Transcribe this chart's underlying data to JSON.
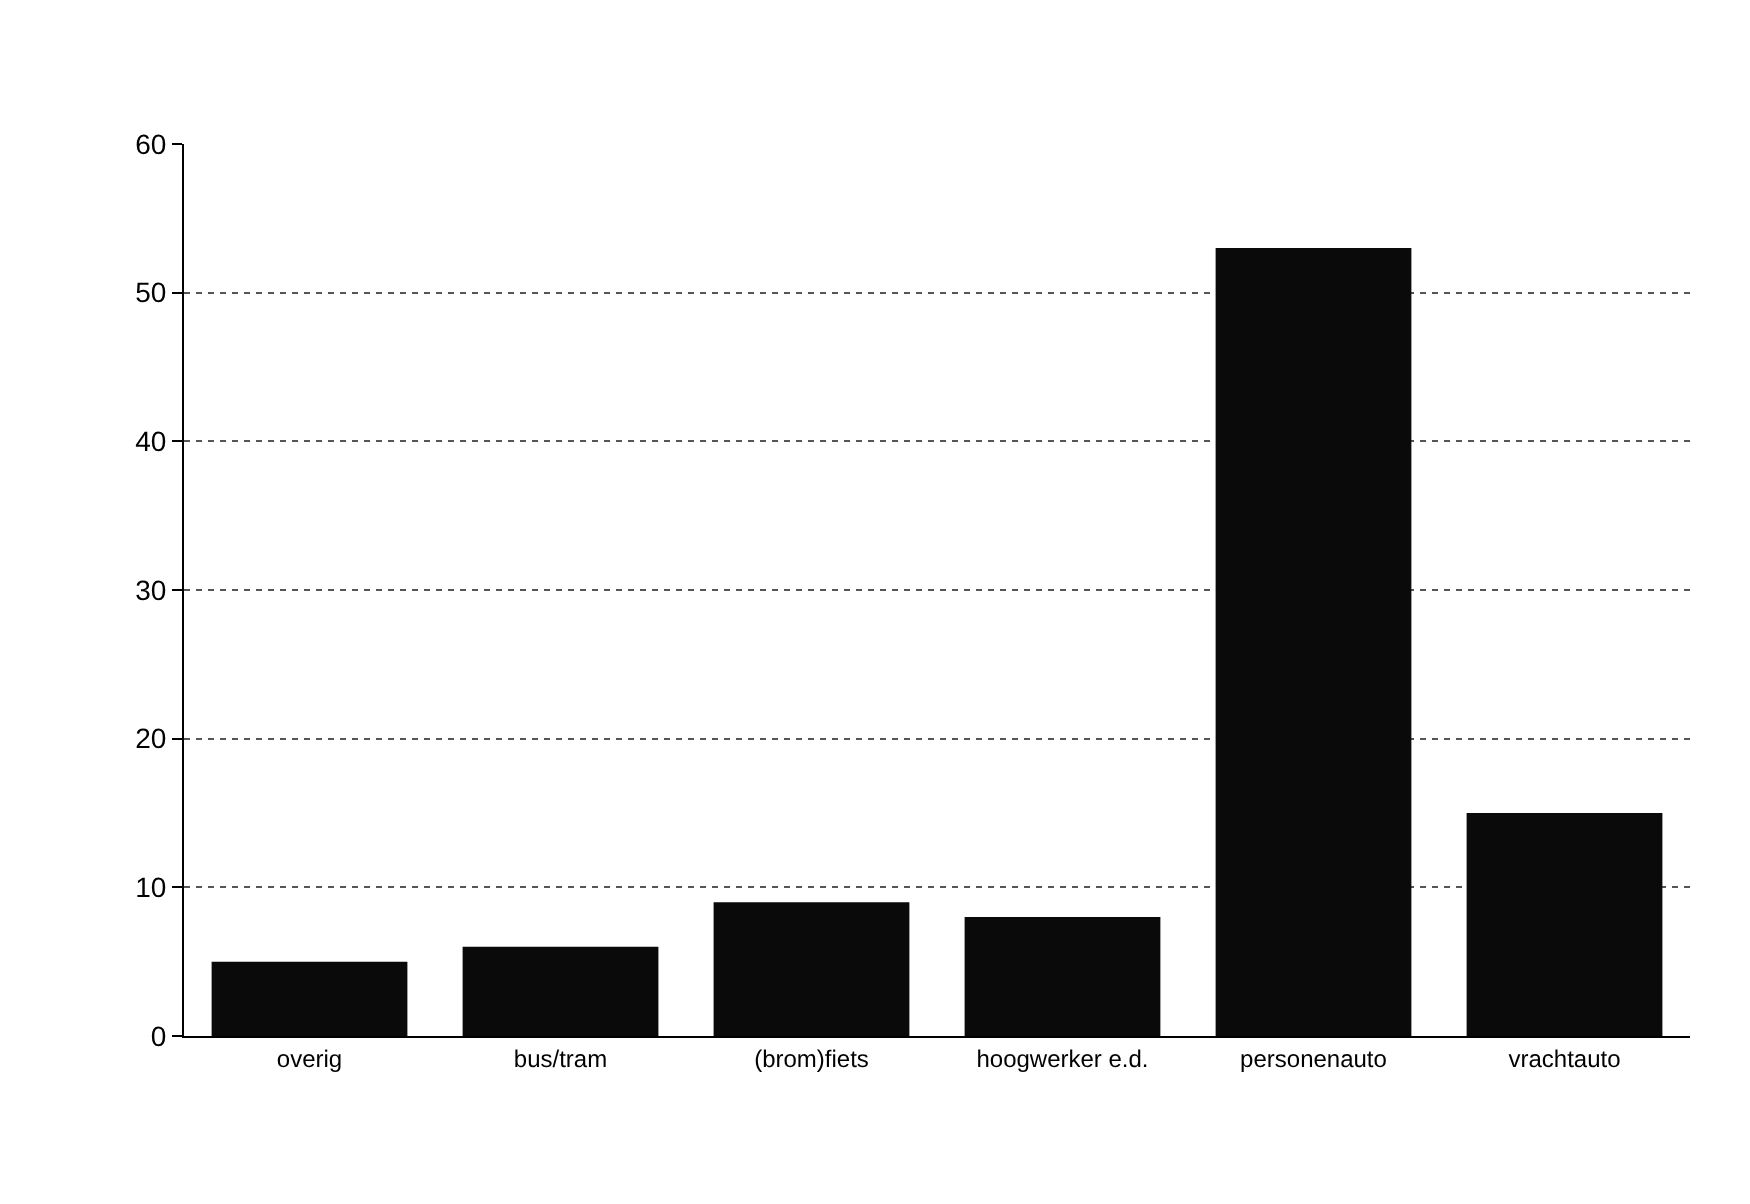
{
  "chart_data": {
    "type": "bar",
    "categories": [
      "overig",
      "bus/tram",
      "(brom)fiets",
      "hoogwerker e.d.",
      "personenauto",
      "vrachtauto"
    ],
    "values": [
      5,
      6,
      9,
      8,
      53,
      15
    ],
    "color": "#0a0a0a",
    "ylim": [
      0,
      60
    ],
    "yticks": [
      0,
      10,
      20,
      30,
      40,
      50,
      60
    ],
    "grid": "y"
  }
}
